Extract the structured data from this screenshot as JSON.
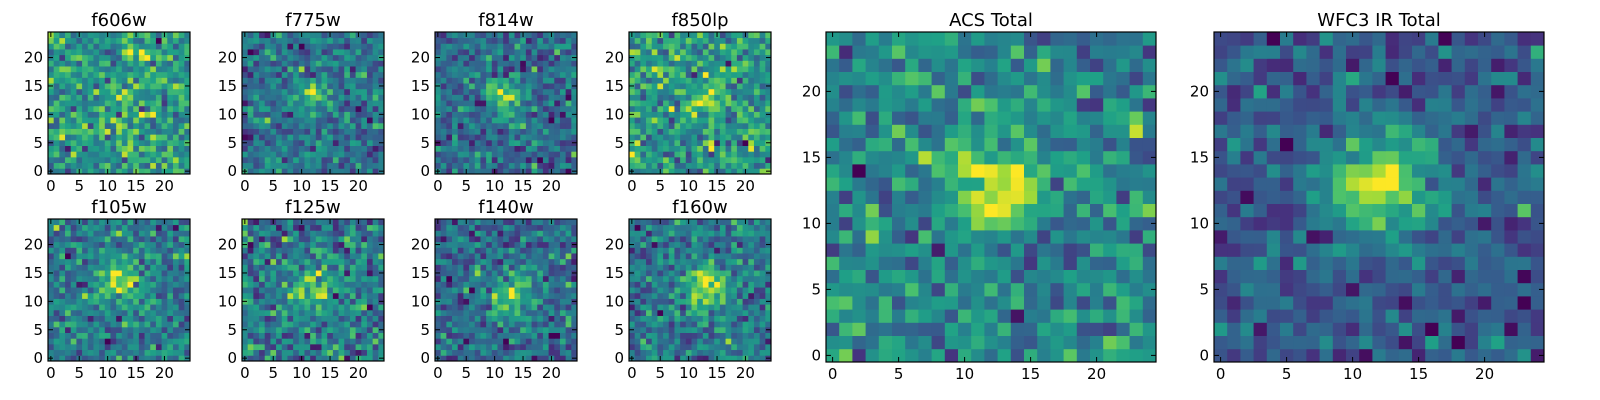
{
  "figure_title": "",
  "colormap": {
    "name": "viridis",
    "stops": [
      "#440154",
      "#46327e",
      "#365c8d",
      "#277f8e",
      "#1fa187",
      "#4ac16d",
      "#a0da39",
      "#fde725"
    ]
  },
  "chart_data": [
    {
      "type": "heatmap",
      "title": "f606w",
      "grid_size": 25,
      "xlim": [
        -0.5,
        24.5
      ],
      "ylim": [
        -0.5,
        24.5
      ],
      "xticks": [
        "0",
        "5",
        "10",
        "15",
        "20"
      ],
      "yticks": [
        "0",
        "5",
        "10",
        "15",
        "20"
      ],
      "source_center": [
        12,
        14
      ],
      "source_strength": 0.1,
      "source_width": 3.0,
      "noise": 0.5,
      "seed": 11
    },
    {
      "type": "heatmap",
      "title": "f775w",
      "grid_size": 25,
      "xlim": [
        -0.5,
        24.5
      ],
      "ylim": [
        -0.5,
        24.5
      ],
      "xticks": [
        "0",
        "5",
        "10",
        "15",
        "20"
      ],
      "yticks": [
        "0",
        "5",
        "10",
        "15",
        "20"
      ],
      "source_center": [
        12,
        14
      ],
      "source_strength": 0.55,
      "source_width": 1.6,
      "noise": 0.42,
      "seed": 23
    },
    {
      "type": "heatmap",
      "title": "f814w",
      "grid_size": 25,
      "xlim": [
        -0.5,
        24.5
      ],
      "ylim": [
        -0.5,
        24.5
      ],
      "xticks": [
        "0",
        "5",
        "10",
        "15",
        "20"
      ],
      "yticks": [
        "0",
        "5",
        "10",
        "15",
        "20"
      ],
      "source_center": [
        12,
        13
      ],
      "source_strength": 0.55,
      "source_width": 2.2,
      "noise": 0.42,
      "seed": 37
    },
    {
      "type": "heatmap",
      "title": "f850lp",
      "grid_size": 25,
      "xlim": [
        -0.5,
        24.5
      ],
      "ylim": [
        -0.5,
        24.5
      ],
      "xticks": [
        "0",
        "5",
        "10",
        "15",
        "20"
      ],
      "yticks": [
        "0",
        "5",
        "10",
        "15",
        "20"
      ],
      "source_center": [
        13,
        13
      ],
      "source_strength": 0.35,
      "source_width": 2.2,
      "noise": 0.5,
      "seed": 41
    },
    {
      "type": "heatmap",
      "title": "ACS Total",
      "grid_size": 25,
      "xlim": [
        -0.5,
        24.5
      ],
      "ylim": [
        -0.5,
        24.5
      ],
      "xticks": [
        "0",
        "5",
        "10",
        "15",
        "20"
      ],
      "yticks": [
        "0",
        "5",
        "10",
        "15",
        "20"
      ],
      "source_center": [
        12.5,
        12.5
      ],
      "source_strength": 0.65,
      "source_width": 2.0,
      "noise": 0.33,
      "seed": 53
    },
    {
      "type": "heatmap",
      "title": "WFC3 IR Total",
      "grid_size": 25,
      "xlim": [
        -0.5,
        24.5
      ],
      "ylim": [
        -0.5,
        24.5
      ],
      "xticks": [
        "0",
        "5",
        "10",
        "15",
        "20"
      ],
      "yticks": [
        "0",
        "5",
        "10",
        "15",
        "20"
      ],
      "source_center": [
        12,
        13
      ],
      "source_strength": 0.65,
      "source_width": 2.8,
      "noise": 0.25,
      "seed": 67
    },
    {
      "type": "heatmap",
      "title": "f105w",
      "grid_size": 25,
      "xlim": [
        -0.5,
        24.5
      ],
      "ylim": [
        -0.5,
        24.5
      ],
      "xticks": [
        "0",
        "5",
        "10",
        "15",
        "20"
      ],
      "yticks": [
        "0",
        "5",
        "10",
        "15",
        "20"
      ],
      "source_center": [
        12,
        13
      ],
      "source_strength": 0.5,
      "source_width": 2.8,
      "noise": 0.35,
      "seed": 71
    },
    {
      "type": "heatmap",
      "title": "f125w",
      "grid_size": 25,
      "xlim": [
        -0.5,
        24.5
      ],
      "ylim": [
        -0.5,
        24.5
      ],
      "xticks": [
        "0",
        "5",
        "10",
        "15",
        "20"
      ],
      "yticks": [
        "0",
        "5",
        "10",
        "15",
        "20"
      ],
      "source_center": [
        12,
        12
      ],
      "source_strength": 0.3,
      "source_width": 3.0,
      "noise": 0.38,
      "seed": 83
    },
    {
      "type": "heatmap",
      "title": "f140w",
      "grid_size": 25,
      "xlim": [
        -0.5,
        24.5
      ],
      "ylim": [
        -0.5,
        24.5
      ],
      "xticks": [
        "0",
        "5",
        "10",
        "15",
        "20"
      ],
      "yticks": [
        "0",
        "5",
        "10",
        "15",
        "20"
      ],
      "source_center": [
        13,
        11
      ],
      "source_strength": 0.45,
      "source_width": 3.0,
      "noise": 0.33,
      "seed": 97
    },
    {
      "type": "heatmap",
      "title": "f160w",
      "grid_size": 25,
      "xlim": [
        -0.5,
        24.5
      ],
      "ylim": [
        -0.5,
        24.5
      ],
      "xticks": [
        "0",
        "5",
        "10",
        "15",
        "20"
      ],
      "yticks": [
        "0",
        "5",
        "10",
        "15",
        "20"
      ],
      "source_center": [
        13,
        13
      ],
      "source_strength": 0.55,
      "source_width": 2.6,
      "noise": 0.33,
      "seed": 101
    }
  ]
}
